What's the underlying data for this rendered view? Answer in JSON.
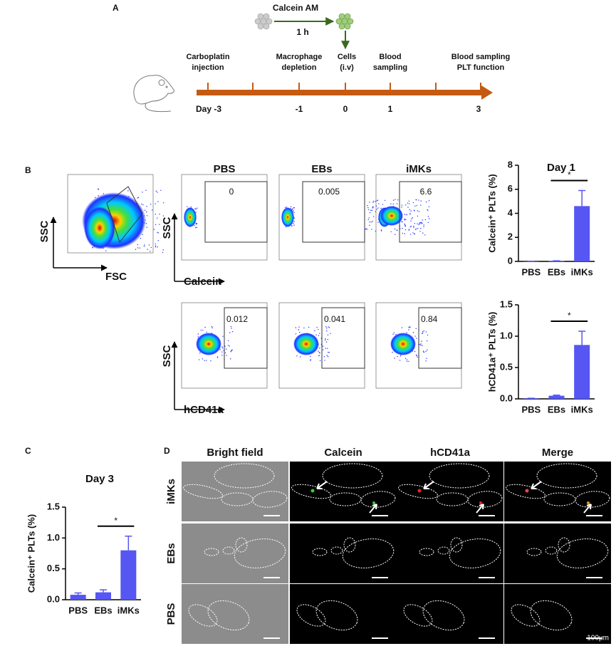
{
  "panel_labels": [
    "A",
    "B",
    "C",
    "D"
  ],
  "timeline": {
    "reagent": "Calcein AM",
    "duration": "1 h",
    "events": [
      {
        "lines": [
          "Carboplatin",
          "injection"
        ],
        "day": "Day -3"
      },
      {
        "lines": [
          "Macrophage",
          "depletion"
        ],
        "day": "-1"
      },
      {
        "lines": [
          "Cells",
          "(i.v)"
        ],
        "day": "0"
      },
      {
        "lines": [
          "Blood",
          "sampling"
        ],
        "day": "1"
      },
      {
        "lines": [
          "Blood sampling",
          "PLT function"
        ],
        "day": "3"
      }
    ]
  },
  "flow": {
    "gating": {
      "y_label": "SSC",
      "x_label": "FSC"
    },
    "groups": [
      "PBS",
      "EBs",
      "iMKs"
    ],
    "rows": [
      {
        "y_label": "SSC",
        "x_label": "Calcein",
        "gates": [
          "0",
          "0.005",
          "6.6"
        ]
      },
      {
        "y_label": "SSC",
        "x_label": "hCD41a",
        "gates": [
          "0.012",
          "0.041",
          "0.84"
        ]
      }
    ]
  },
  "microscopy": {
    "columns": [
      "Bright field",
      "Calcein",
      "hCD41a",
      "Merge"
    ],
    "rows": [
      "iMKs",
      "EBs",
      "PBS"
    ],
    "scale": "100μm"
  },
  "chart_data": [
    {
      "type": "bar",
      "title": "Day 1",
      "ylabel": "Calcein⁺ PLTs (%)",
      "categories": [
        "PBS",
        "EBs",
        "iMKs"
      ],
      "values": [
        0,
        0.03,
        4.6
      ],
      "errors": [
        0,
        0.02,
        1.3
      ],
      "color": "#5656f2",
      "ylim": [
        0,
        8
      ],
      "yticks": [
        0,
        2,
        4,
        6,
        8
      ],
      "annotation": "*"
    },
    {
      "type": "bar",
      "ylabel": "hCD41a⁺ PLTs (%)",
      "categories": [
        "PBS",
        "EBs",
        "iMKs"
      ],
      "values": [
        0.01,
        0.05,
        0.86
      ],
      "errors": [
        0,
        0.01,
        0.22
      ],
      "color": "#5656f2",
      "ylim": [
        0,
        1.5
      ],
      "yticks": [
        {
          "value": 0,
          "label": "0.0"
        },
        0.5,
        {
          "value": 1,
          "label": "1.0"
        },
        1.5
      ],
      "annotation": "*"
    },
    {
      "type": "bar",
      "title": "Day 3",
      "ylabel": "Calcein⁺ PLTs (%)",
      "categories": [
        "PBS",
        "EBs",
        "iMKs"
      ],
      "values": [
        0.08,
        0.12,
        0.8
      ],
      "errors": [
        0.03,
        0.04,
        0.23
      ],
      "color": "#5656f2",
      "ylim": [
        0,
        1.5
      ],
      "yticks": [
        {
          "value": 0,
          "label": "0.0"
        },
        0.5,
        {
          "value": 1,
          "label": "1.0"
        },
        1.5
      ],
      "annotation": "*"
    }
  ]
}
